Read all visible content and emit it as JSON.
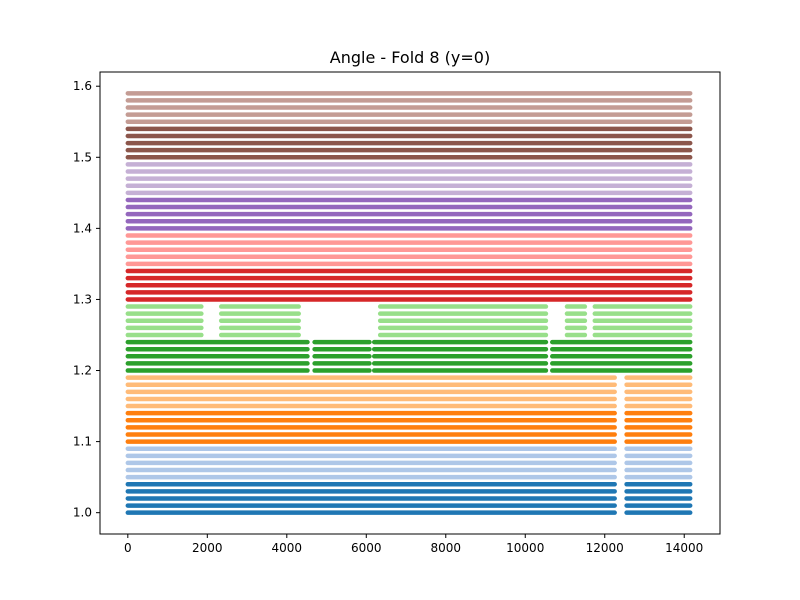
{
  "chart_data": {
    "type": "scatter",
    "title": "Angle - Fold 8 (y=0)",
    "xlabel": "",
    "ylabel": "",
    "xlim": [
      -700,
      14900
    ],
    "ylim": [
      0.97,
      1.62
    ],
    "x_ticks": [
      0,
      2000,
      4000,
      6000,
      8000,
      10000,
      12000,
      14000
    ],
    "x_tick_labels": [
      "0",
      "2000",
      "4000",
      "6000",
      "8000",
      "10000",
      "12000",
      "14000"
    ],
    "y_ticks": [
      1.0,
      1.1,
      1.2,
      1.3,
      1.4,
      1.5,
      1.6
    ],
    "y_tick_labels": [
      "1.0",
      "1.1",
      "1.2",
      "1.3",
      "1.4",
      "1.5",
      "1.6"
    ],
    "grid": false,
    "legend": "none",
    "x_range_points": [
      0,
      14150
    ],
    "series": [
      {
        "color": "#1f77b4",
        "y": [
          1.0,
          1.01,
          1.02,
          1.03,
          1.04
        ],
        "segments": [
          [
            0,
            12250
          ],
          [
            12550,
            14150
          ]
        ]
      },
      {
        "color": "#aec7e8",
        "y": [
          1.05,
          1.06,
          1.07,
          1.08,
          1.09
        ],
        "segments": [
          [
            0,
            12250
          ],
          [
            12550,
            14150
          ]
        ]
      },
      {
        "color": "#ff7f0e",
        "y": [
          1.1,
          1.11,
          1.12,
          1.13,
          1.14
        ],
        "segments": [
          [
            0,
            12250
          ],
          [
            12550,
            14150
          ]
        ]
      },
      {
        "color": "#ffbb78",
        "y": [
          1.15,
          1.16,
          1.17,
          1.18,
          1.19
        ],
        "segments": [
          [
            0,
            12250
          ],
          [
            12550,
            14150
          ]
        ]
      },
      {
        "color": "#2ca02c",
        "y": [
          1.2,
          1.21,
          1.22,
          1.23,
          1.24
        ],
        "segments": [
          [
            0,
            4520
          ],
          [
            4700,
            6080
          ],
          [
            6200,
            10520
          ],
          [
            10680,
            14150
          ]
        ]
      },
      {
        "color": "#98df8a",
        "y": [
          1.25,
          1.26,
          1.27,
          1.28,
          1.29
        ],
        "segments": [
          [
            0,
            1850
          ],
          [
            2350,
            4300
          ],
          [
            6350,
            10520
          ],
          [
            11050,
            11500
          ],
          [
            11750,
            14150
          ]
        ]
      },
      {
        "color": "#d62728",
        "y": [
          1.3,
          1.31,
          1.32,
          1.33,
          1.34
        ],
        "segments": [
          [
            0,
            14150
          ]
        ]
      },
      {
        "color": "#ff9896",
        "y": [
          1.35,
          1.36,
          1.37,
          1.38,
          1.39
        ],
        "segments": [
          [
            0,
            14150
          ]
        ]
      },
      {
        "color": "#9467bd",
        "y": [
          1.4,
          1.41,
          1.42,
          1.43,
          1.44
        ],
        "segments": [
          [
            0,
            14150
          ]
        ]
      },
      {
        "color": "#c5b0d5",
        "y": [
          1.45,
          1.46,
          1.47,
          1.48,
          1.49
        ],
        "segments": [
          [
            0,
            14150
          ]
        ]
      },
      {
        "color": "#8c564b",
        "y": [
          1.5,
          1.51,
          1.52,
          1.53,
          1.54
        ],
        "segments": [
          [
            0,
            14150
          ]
        ]
      },
      {
        "color": "#c49c94",
        "y": [
          1.55,
          1.56,
          1.57,
          1.58,
          1.59
        ],
        "segments": [
          [
            0,
            14150
          ]
        ]
      }
    ]
  }
}
